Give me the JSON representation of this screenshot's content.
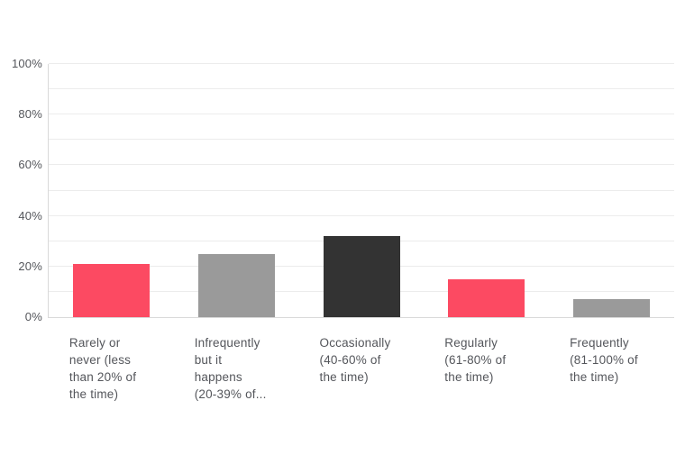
{
  "chart_data": {
    "type": "bar",
    "title": "",
    "xlabel": "",
    "ylabel": "",
    "categories": [
      "Rarely or never (less than 20% of the time)",
      "Infrequently but it happens (20-39% of...",
      "Occasionally (40-60% of the time)",
      "Regularly (61-80% of the time)",
      "Frequently (81-100% of the time)"
    ],
    "category_lines": [
      [
        "Rarely or",
        "never (less",
        "than 20% of",
        "the time)"
      ],
      [
        "Infrequently",
        "but it",
        "happens",
        "(20-39% of..."
      ],
      [
        "Occasionally",
        "(40-60% of",
        "the time)"
      ],
      [
        "Regularly",
        "(61-80% of",
        "the time)"
      ],
      [
        "Frequently",
        "(81-100% of",
        "the time)"
      ]
    ],
    "values": [
      21,
      25,
      32,
      15,
      7
    ],
    "bar_colors": [
      "#fc4a62",
      "#9a9a9a",
      "#333333",
      "#fc4a62",
      "#9a9a9a"
    ],
    "ylim": [
      0,
      100
    ],
    "y_tick_labels": [
      "0%",
      "20%",
      "40%",
      "60%",
      "80%",
      "100%"
    ],
    "y_major_step": 20,
    "y_grid_step": 10,
    "grid": true,
    "legend_position": "none"
  },
  "colors": {
    "background": "#ffffff",
    "gridline": "#ececec",
    "axis_line": "#d9d9d9",
    "text": "#54565b"
  }
}
